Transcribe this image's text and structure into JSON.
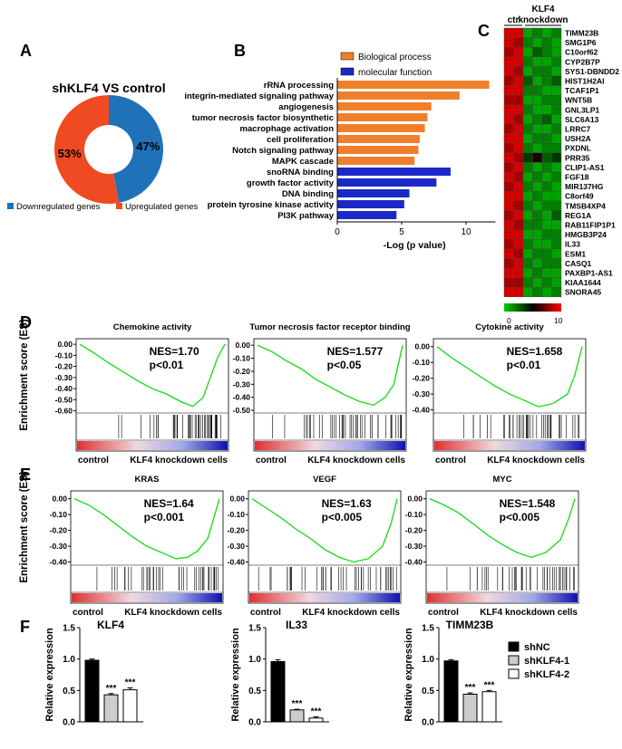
{
  "panel_labels": {
    "A": "A",
    "B": "B",
    "C": "C",
    "D": "D",
    "E": "E",
    "F": "F"
  },
  "chart_data": [
    {
      "id": "A",
      "type": "pie",
      "title": "shKLF4 VS control",
      "slices": [
        {
          "name": "Downregulated genes",
          "value": 47,
          "label": "47%",
          "color": "#1f72b8"
        },
        {
          "name": "Upregulated genes",
          "value": 53,
          "label": "53%",
          "color": "#f04a23"
        }
      ]
    },
    {
      "id": "B",
      "type": "bar",
      "orientation": "horizontal",
      "xlabel": "-Log (p value)",
      "xlim": [
        0,
        12
      ],
      "xticks": [
        "0",
        "5",
        "10"
      ],
      "legend": [
        {
          "name": "Biological process",
          "color": "#f07f2c"
        },
        {
          "name": "molecular function",
          "color": "#1b29c9"
        }
      ],
      "categories": [
        "rRNA processing",
        "integrin-mediated signaling pathway",
        "angiogenesis",
        "tumor necrosis factor biosynthetic",
        "macrophage activation",
        "cell proliferation",
        "Notch signaling pathway",
        "MAPK cascade",
        "snoRNA binding",
        "growth factor activity",
        "DNA binding",
        "protein tyrosine kinase activity",
        "PI3K pathway"
      ],
      "values": [
        11.8,
        9.5,
        7.3,
        7.0,
        6.8,
        6.4,
        6.3,
        6.0,
        8.8,
        7.7,
        5.6,
        5.2,
        4.6
      ],
      "groups": [
        "Biological process",
        "Biological process",
        "Biological process",
        "Biological process",
        "Biological process",
        "Biological process",
        "Biological process",
        "Biological process",
        "molecular function",
        "molecular function",
        "molecular function",
        "molecular function",
        "molecular function"
      ]
    },
    {
      "id": "C",
      "type": "heatmap",
      "column_groups": [
        "ctr",
        "KLF4 knockdown"
      ],
      "genes": [
        "TIMM23B",
        "SMG1P6",
        "C10orf62",
        "CYP2B7P",
        "SYS1-DBNDD2",
        "HIST1H2AI",
        "TCAF1P1",
        "WNT5B",
        "GNL3LP1",
        "SLC6A13",
        "LRRC7",
        "USH2A",
        "PXDNL",
        "PRR35",
        "CLIP1-AS1",
        "FGF18",
        "MIR137HG",
        "C8orf49",
        "TMSB4XP4",
        "REG1A",
        "RAB11FIP1P1",
        "HMGB3P24",
        "IL33",
        "ESM1",
        "CASQ1",
        "PAXBP1-AS1",
        "KIAA1644",
        "SNORA45"
      ],
      "colorbar": {
        "min": "0",
        "max": "10"
      },
      "values": [
        [
          9,
          9,
          1,
          2,
          1,
          2
        ],
        [
          9,
          8,
          2,
          1,
          2,
          1
        ],
        [
          8,
          9,
          1,
          3,
          2,
          1
        ],
        [
          9,
          9,
          2,
          1,
          1,
          2
        ],
        [
          9,
          8,
          1,
          2,
          2,
          1
        ],
        [
          8,
          9,
          3,
          1,
          2,
          3
        ],
        [
          9,
          9,
          2,
          2,
          1,
          1
        ],
        [
          8,
          8,
          1,
          1,
          2,
          2
        ],
        [
          9,
          9,
          2,
          1,
          1,
          2
        ],
        [
          9,
          8,
          1,
          2,
          3,
          1
        ],
        [
          8,
          9,
          2,
          1,
          1,
          2
        ],
        [
          9,
          9,
          1,
          2,
          2,
          1
        ],
        [
          8,
          9,
          2,
          1,
          2,
          2
        ],
        [
          9,
          8,
          4,
          5,
          3,
          4
        ],
        [
          8,
          9,
          2,
          1,
          2,
          1
        ],
        [
          9,
          8,
          1,
          2,
          1,
          2
        ],
        [
          8,
          9,
          2,
          1,
          2,
          1
        ],
        [
          9,
          9,
          1,
          2,
          1,
          1
        ],
        [
          9,
          8,
          2,
          1,
          2,
          2
        ],
        [
          8,
          9,
          1,
          2,
          1,
          3
        ],
        [
          9,
          8,
          2,
          2,
          1,
          1
        ],
        [
          9,
          9,
          1,
          1,
          2,
          2
        ],
        [
          8,
          9,
          2,
          1,
          1,
          2
        ],
        [
          9,
          8,
          1,
          2,
          2,
          1
        ],
        [
          8,
          9,
          2,
          1,
          2,
          2
        ],
        [
          9,
          9,
          1,
          2,
          1,
          1
        ],
        [
          8,
          8,
          2,
          1,
          2,
          1
        ],
        [
          9,
          9,
          1,
          2,
          1,
          2
        ]
      ]
    },
    {
      "id": "D",
      "type": "line",
      "ylabel": "Enrichment score (ES)",
      "xlabel_left": "control",
      "xlabel_right": "KLF4 knockdown cells",
      "plots": [
        {
          "title": "Chemokine activity",
          "nes": "NES=1.70",
          "p": "p<0.01",
          "yticks": [
            "0.00",
            "-0.10",
            "-0.20",
            "-0.30",
            "-0.40",
            "-0.50",
            "-0.60"
          ],
          "ylim": [
            -0.62,
            0.05
          ],
          "x": [
            0,
            0.1,
            0.2,
            0.3,
            0.4,
            0.5,
            0.6,
            0.7,
            0.78,
            0.85,
            0.9,
            0.95,
            1.0
          ],
          "y": [
            0,
            -0.08,
            -0.17,
            -0.25,
            -0.33,
            -0.4,
            -0.45,
            -0.52,
            -0.56,
            -0.48,
            -0.3,
            -0.12,
            0.0
          ]
        },
        {
          "title": "Tumor necrosis factor receptor binding",
          "nes": "NES=1.577",
          "p": "p<0.05",
          "yticks": [
            "0.00",
            "-0.10",
            "-0.20",
            "-0.30",
            "-0.40",
            "-0.50"
          ],
          "ylim": [
            -0.52,
            0.05
          ],
          "x": [
            0,
            0.1,
            0.2,
            0.3,
            0.4,
            0.5,
            0.6,
            0.7,
            0.8,
            0.88,
            0.94,
            1.0
          ],
          "y": [
            0,
            -0.05,
            -0.12,
            -0.18,
            -0.26,
            -0.32,
            -0.38,
            -0.43,
            -0.46,
            -0.4,
            -0.3,
            0.0
          ]
        },
        {
          "title": "Cytokine activity",
          "nes": "NES=1.658",
          "p": "p<0.01",
          "yticks": [
            "0.00",
            "-0.10",
            "-0.20",
            "-0.30",
            "-0.40"
          ],
          "ylim": [
            -0.42,
            0.05
          ],
          "x": [
            0,
            0.1,
            0.2,
            0.3,
            0.4,
            0.5,
            0.6,
            0.7,
            0.8,
            0.9,
            0.95,
            1.0
          ],
          "y": [
            0,
            -0.07,
            -0.13,
            -0.19,
            -0.25,
            -0.3,
            -0.34,
            -0.38,
            -0.36,
            -0.3,
            -0.18,
            0.0
          ]
        }
      ]
    },
    {
      "id": "E",
      "type": "line",
      "ylabel": "Enrichment score (ES)",
      "xlabel_left": "control",
      "xlabel_right": "KLF4 knockdown cells",
      "plots": [
        {
          "title": "KRAS",
          "nes": "NES=1.64",
          "p": "p<0.001",
          "yticks": [
            "0.00",
            "-0.10",
            "-0.20",
            "-0.30",
            "-0.40"
          ],
          "ylim": [
            -0.42,
            0.05
          ],
          "x": [
            0,
            0.1,
            0.2,
            0.3,
            0.4,
            0.5,
            0.6,
            0.7,
            0.78,
            0.85,
            0.92,
            1.0
          ],
          "y": [
            0,
            -0.04,
            -0.1,
            -0.17,
            -0.24,
            -0.3,
            -0.34,
            -0.38,
            -0.37,
            -0.33,
            -0.25,
            0.0
          ]
        },
        {
          "title": "VEGF",
          "nes": "NES=1.63",
          "p": "p<0.005",
          "yticks": [
            "0.00",
            "-0.10",
            "-0.20",
            "-0.30",
            "-0.40"
          ],
          "ylim": [
            -0.42,
            0.05
          ],
          "x": [
            0,
            0.1,
            0.2,
            0.3,
            0.4,
            0.5,
            0.6,
            0.7,
            0.8,
            0.9,
            0.96,
            1.0
          ],
          "y": [
            0,
            -0.06,
            -0.12,
            -0.19,
            -0.25,
            -0.32,
            -0.37,
            -0.4,
            -0.38,
            -0.3,
            -0.15,
            0.0
          ]
        },
        {
          "title": "MYC",
          "nes": "NES=1.548",
          "p": "p<0.005",
          "yticks": [
            "0.00",
            "-0.10",
            "-0.20",
            "-0.30",
            "-0.40"
          ],
          "ylim": [
            -0.42,
            0.05
          ],
          "x": [
            0,
            0.1,
            0.2,
            0.3,
            0.4,
            0.5,
            0.6,
            0.7,
            0.8,
            0.9,
            0.96,
            1.0
          ],
          "y": [
            0,
            -0.04,
            -0.09,
            -0.16,
            -0.23,
            -0.29,
            -0.34,
            -0.37,
            -0.34,
            -0.26,
            -0.12,
            0.0
          ]
        }
      ]
    },
    {
      "id": "F",
      "type": "bar",
      "ylabel": "Relative expression",
      "ylim": [
        0,
        1.5
      ],
      "yticks": [
        "0.0",
        "0.5",
        "1.0",
        "1.5"
      ],
      "legend": [
        {
          "name": "shNC",
          "color": "#000000"
        },
        {
          "name": "shKLF4-1",
          "color": "#cccccc"
        },
        {
          "name": "shKLF4-2",
          "color": "#ffffff"
        }
      ],
      "plots": [
        {
          "title": "KLF4",
          "values": [
            0.98,
            0.43,
            0.51
          ],
          "errors": [
            0.02,
            0.02,
            0.03
          ],
          "stars": [
            "",
            "***",
            "***"
          ]
        },
        {
          "title": "IL33",
          "values": [
            0.96,
            0.19,
            0.06
          ],
          "errors": [
            0.03,
            0.01,
            0.02
          ],
          "stars": [
            "",
            "***",
            "***"
          ]
        },
        {
          "title": "TIMM23B",
          "values": [
            0.97,
            0.44,
            0.48
          ],
          "errors": [
            0.02,
            0.02,
            0.02
          ],
          "stars": [
            "",
            "***",
            "***"
          ]
        }
      ]
    }
  ]
}
